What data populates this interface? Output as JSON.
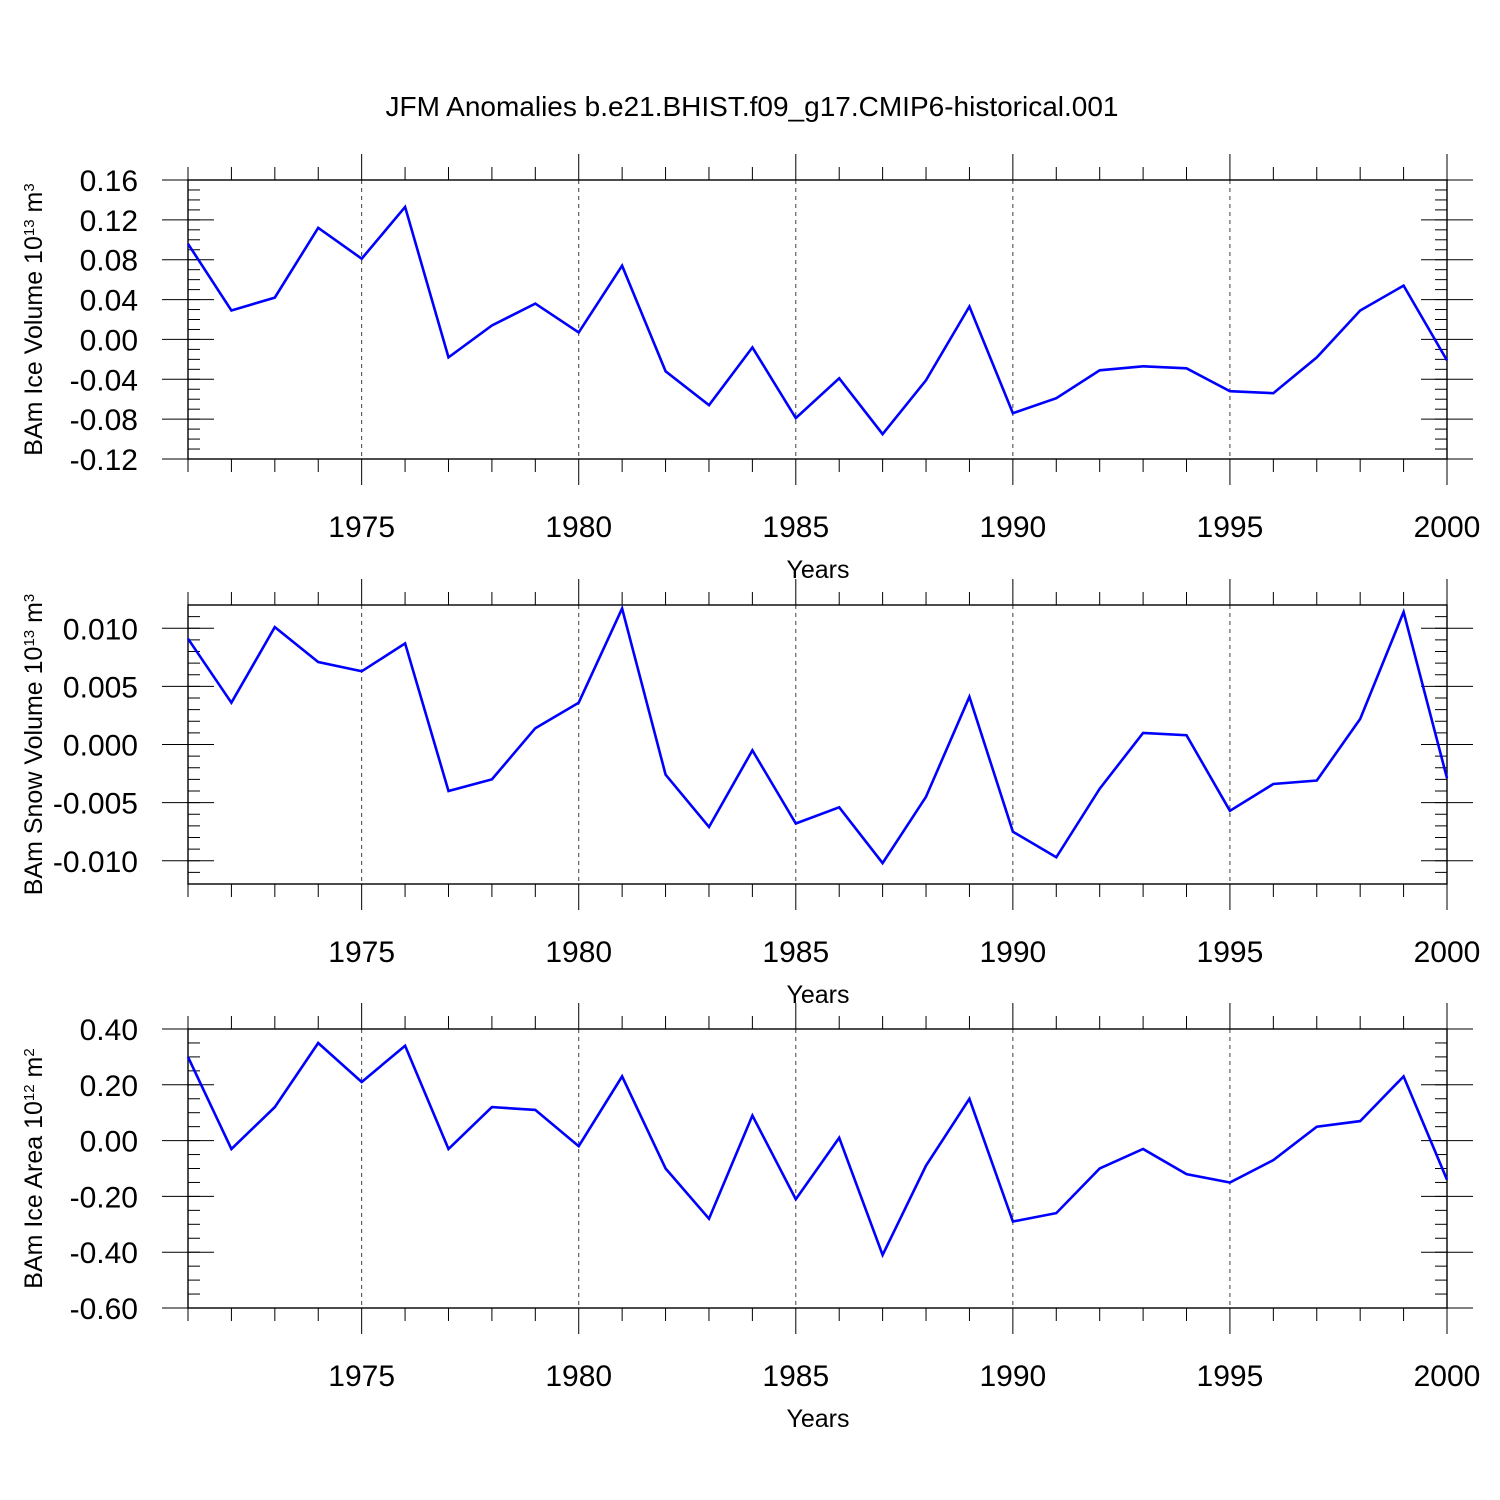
{
  "title": "JFM Anomalies b.e21.BHIST.f09_g17.CMIP6-historical.001",
  "line_color": "#0000ff",
  "chart_data": [
    {
      "type": "line",
      "ylabel": {
        "prefix": "BAm Ice Volume 10",
        "exp": "13",
        "unit": " m",
        "unit_exp": "3"
      },
      "xlabel": "Years",
      "xlim": [
        1971,
        2000
      ],
      "ylim": [
        -0.12,
        0.16
      ],
      "yticks": [
        -0.12,
        -0.08,
        -0.04,
        0.0,
        0.04,
        0.08,
        0.12,
        0.16
      ],
      "ytick_labels": [
        "-0.12",
        "-0.08",
        "-0.04",
        "0.00",
        "0.04",
        "0.08",
        "0.12",
        "0.16"
      ],
      "yminor_step": 0.01,
      "xticks": [
        1975,
        1980,
        1985,
        1990,
        1995,
        2000
      ],
      "xtick_labels": [
        "1975",
        "1980",
        "1985",
        "1990",
        "1995",
        "2000"
      ],
      "grid": "dashed vertical at major x ticks",
      "x": [
        1971,
        1972,
        1973,
        1974,
        1975,
        1976,
        1977,
        1978,
        1979,
        1980,
        1981,
        1982,
        1983,
        1984,
        1985,
        1986,
        1987,
        1988,
        1989,
        1990,
        1991,
        1992,
        1993,
        1994,
        1995,
        1996,
        1997,
        1998,
        1999,
        2000
      ],
      "values": [
        0.096,
        0.029,
        0.042,
        0.112,
        0.081,
        0.133,
        -0.018,
        0.014,
        0.036,
        0.007,
        0.074,
        -0.032,
        -0.066,
        -0.008,
        -0.079,
        -0.039,
        -0.095,
        -0.041,
        0.033,
        -0.074,
        -0.059,
        -0.031,
        -0.027,
        -0.029,
        -0.052,
        -0.054,
        -0.018,
        0.029,
        0.054,
        -0.021
      ]
    },
    {
      "type": "line",
      "ylabel": {
        "prefix": "BAm Snow Volume 10",
        "exp": "13",
        "unit": " m",
        "unit_exp": "3"
      },
      "xlabel": "Years",
      "xlim": [
        1971,
        2000
      ],
      "ylim": [
        -0.012,
        0.012
      ],
      "yticks": [
        -0.01,
        -0.005,
        0.0,
        0.005,
        0.01
      ],
      "ytick_labels": [
        "-0.010",
        "-0.005",
        "0.000",
        "0.005",
        "0.010"
      ],
      "yminor_step": 0.001,
      "xticks": [
        1975,
        1980,
        1985,
        1990,
        1995,
        2000
      ],
      "xtick_labels": [
        "1975",
        "1980",
        "1985",
        "1990",
        "1995",
        "2000"
      ],
      "grid": "dashed vertical at major x ticks",
      "x": [
        1971,
        1972,
        1973,
        1974,
        1975,
        1976,
        1977,
        1978,
        1979,
        1980,
        1981,
        1982,
        1983,
        1984,
        1985,
        1986,
        1987,
        1988,
        1989,
        1990,
        1991,
        1992,
        1993,
        1994,
        1995,
        1996,
        1997,
        1998,
        1999,
        2000
      ],
      "values": [
        0.0091,
        0.0036,
        0.0101,
        0.0071,
        0.0063,
        0.0087,
        -0.004,
        -0.003,
        0.0014,
        0.0036,
        0.0117,
        -0.0026,
        -0.0071,
        -0.0005,
        -0.0068,
        -0.0054,
        -0.0102,
        -0.0045,
        0.0041,
        -0.0075,
        -0.0097,
        -0.0038,
        0.001,
        0.0008,
        -0.0057,
        -0.0034,
        -0.0031,
        0.0022,
        0.0114,
        -0.0029
      ]
    },
    {
      "type": "line",
      "ylabel": {
        "prefix": "BAm Ice Area 10",
        "exp": "12",
        "unit": " m",
        "unit_exp": "2"
      },
      "xlabel": "Years",
      "xlim": [
        1971,
        2000
      ],
      "ylim": [
        -0.6,
        0.4
      ],
      "yticks": [
        -0.6,
        -0.4,
        -0.2,
        0.0,
        0.2,
        0.4
      ],
      "ytick_labels": [
        "-0.60",
        "-0.40",
        "-0.20",
        "0.00",
        "0.20",
        "0.40"
      ],
      "yminor_step": 0.05,
      "xticks": [
        1975,
        1980,
        1985,
        1990,
        1995,
        2000
      ],
      "xtick_labels": [
        "1975",
        "1980",
        "1985",
        "1990",
        "1995",
        "2000"
      ],
      "grid": "dashed vertical at major x ticks",
      "x": [
        1971,
        1972,
        1973,
        1974,
        1975,
        1976,
        1977,
        1978,
        1979,
        1980,
        1981,
        1982,
        1983,
        1984,
        1985,
        1986,
        1987,
        1988,
        1989,
        1990,
        1991,
        1992,
        1993,
        1994,
        1995,
        1996,
        1997,
        1998,
        1999,
        2000
      ],
      "values": [
        0.3,
        -0.03,
        0.12,
        0.35,
        0.21,
        0.34,
        -0.03,
        0.12,
        0.11,
        -0.02,
        0.23,
        -0.1,
        -0.28,
        0.09,
        -0.21,
        0.01,
        -0.41,
        -0.09,
        0.15,
        -0.29,
        -0.26,
        -0.1,
        -0.03,
        -0.12,
        -0.15,
        -0.07,
        0.05,
        0.07,
        0.23,
        -0.14
      ]
    }
  ]
}
